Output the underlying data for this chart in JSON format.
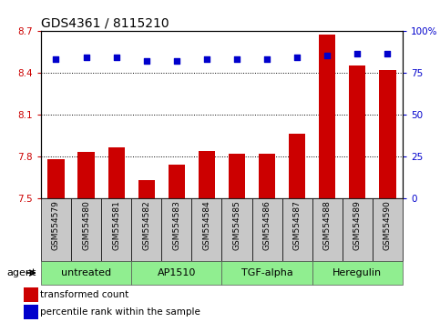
{
  "title": "GDS4361 / 8115210",
  "samples": [
    "GSM554579",
    "GSM554580",
    "GSM554581",
    "GSM554582",
    "GSM554583",
    "GSM554584",
    "GSM554585",
    "GSM554586",
    "GSM554587",
    "GSM554588",
    "GSM554589",
    "GSM554590"
  ],
  "bar_values": [
    7.78,
    7.83,
    7.86,
    7.63,
    7.74,
    7.84,
    7.82,
    7.82,
    7.96,
    8.67,
    8.45,
    8.42
  ],
  "dot_values": [
    83,
    84,
    84,
    82,
    82,
    83,
    83,
    83,
    84,
    85,
    86,
    86
  ],
  "ylim_left": [
    7.5,
    8.7
  ],
  "ylim_right": [
    0,
    100
  ],
  "yticks_left": [
    7.5,
    7.8,
    8.1,
    8.4,
    8.7
  ],
  "yticks_right": [
    0,
    25,
    50,
    75,
    100
  ],
  "ytick_labels_left": [
    "7.5",
    "7.8",
    "8.1",
    "8.4",
    "8.7"
  ],
  "ytick_labels_right": [
    "0",
    "25",
    "50",
    "75",
    "100%"
  ],
  "bar_color": "#cc0000",
  "dot_color": "#0000cc",
  "bg_xtick": "#c8c8c8",
  "agent_groups": [
    {
      "label": "untreated",
      "start": 0,
      "end": 3
    },
    {
      "label": "AP1510",
      "start": 3,
      "end": 6
    },
    {
      "label": "TGF-alpha",
      "start": 6,
      "end": 9
    },
    {
      "label": "Heregulin",
      "start": 9,
      "end": 12
    }
  ],
  "agent_group_color": "#90ee90",
  "legend_bar_label": "transformed count",
  "legend_dot_label": "percentile rank within the sample",
  "agent_label": "agent",
  "title_fontsize": 10,
  "tick_fontsize": 7.5,
  "sample_fontsize": 6.5,
  "agent_fontsize": 8,
  "legend_fontsize": 7.5
}
